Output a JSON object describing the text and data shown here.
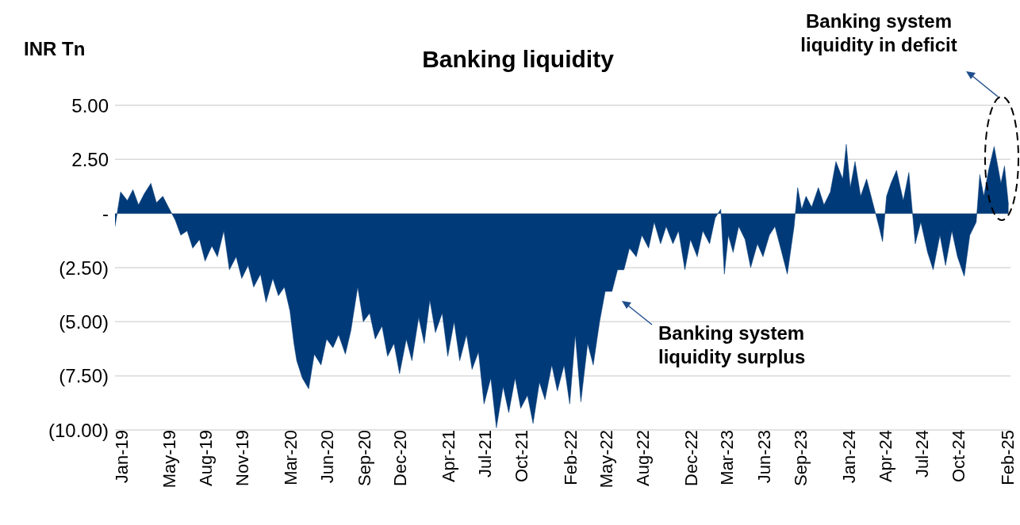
{
  "chart_data": {
    "type": "area",
    "title": "Banking liquidity",
    "ylabel": "INR Tn",
    "annotations": [
      "Banking system liquidity in deficit",
      "Banking system liquidity surplus"
    ],
    "x": [
      "2019-01-01",
      "2019-01-15",
      "2019-02-01",
      "2019-02-15",
      "2019-03-01",
      "2019-03-15",
      "2019-04-01",
      "2019-04-15",
      "2019-05-01",
      "2019-05-15",
      "2019-06-01",
      "2019-06-15",
      "2019-07-01",
      "2019-07-15",
      "2019-08-01",
      "2019-08-15",
      "2019-09-01",
      "2019-09-15",
      "2019-10-01",
      "2019-10-15",
      "2019-11-01",
      "2019-11-15",
      "2019-12-01",
      "2019-12-15",
      "2020-01-01",
      "2020-01-15",
      "2020-02-01",
      "2020-02-15",
      "2020-03-01",
      "2020-03-15",
      "2020-03-25",
      "2020-04-01",
      "2020-04-15",
      "2020-05-01",
      "2020-05-15",
      "2020-06-01",
      "2020-06-15",
      "2020-07-01",
      "2020-07-15",
      "2020-08-01",
      "2020-08-15",
      "2020-09-01",
      "2020-09-15",
      "2020-10-01",
      "2020-10-15",
      "2020-11-01",
      "2020-11-15",
      "2020-12-01",
      "2020-12-15",
      "2021-01-01",
      "2021-01-15",
      "2021-02-01",
      "2021-02-15",
      "2021-03-01",
      "2021-03-15",
      "2021-04-01",
      "2021-04-15",
      "2021-05-01",
      "2021-05-15",
      "2021-06-01",
      "2021-06-15",
      "2021-07-01",
      "2021-07-15",
      "2021-08-01",
      "2021-08-15",
      "2021-09-01",
      "2021-09-15",
      "2021-10-01",
      "2021-10-15",
      "2021-11-01",
      "2021-11-15",
      "2021-12-01",
      "2021-12-15",
      "2022-01-01",
      "2022-01-15",
      "2022-02-01",
      "2022-02-15",
      "2022-03-01",
      "2022-03-15",
      "2022-04-01",
      "2022-04-15",
      "2022-05-01",
      "2022-05-15",
      "2022-06-01",
      "2022-06-15",
      "2022-07-01",
      "2022-07-15",
      "2022-08-01",
      "2022-08-15",
      "2022-09-01",
      "2022-09-15",
      "2022-10-01",
      "2022-10-15",
      "2022-11-01",
      "2022-11-15",
      "2022-12-01",
      "2022-12-15",
      "2023-01-01",
      "2023-01-15",
      "2023-02-01",
      "2023-02-15",
      "2023-03-01",
      "2023-03-10",
      "2023-03-20",
      "2023-04-01",
      "2023-04-15",
      "2023-05-01",
      "2023-05-15",
      "2023-06-01",
      "2023-06-15",
      "2023-07-01",
      "2023-07-15",
      "2023-08-01",
      "2023-08-15",
      "2023-09-01",
      "2023-09-10",
      "2023-09-20",
      "2023-10-01",
      "2023-10-15",
      "2023-11-01",
      "2023-11-15",
      "2023-12-01",
      "2023-12-15",
      "2024-01-01",
      "2024-01-10",
      "2024-01-20",
      "2024-02-01",
      "2024-02-15",
      "2024-03-01",
      "2024-03-15",
      "2024-04-01",
      "2024-04-10",
      "2024-04-20",
      "2024-05-01",
      "2024-05-15",
      "2024-06-01",
      "2024-06-15",
      "2024-07-01",
      "2024-07-15",
      "2024-08-01",
      "2024-08-15",
      "2024-09-01",
      "2024-09-15",
      "2024-10-01",
      "2024-10-15",
      "2024-11-01",
      "2024-11-15",
      "2024-12-01",
      "2024-12-10",
      "2024-12-20",
      "2025-01-01",
      "2025-01-15",
      "2025-02-01",
      "2025-02-10",
      "2025-02-20"
    ],
    "series": [
      {
        "color": "#003a78",
        "values": [
          -0.6,
          1.0,
          0.6,
          1.1,
          0.4,
          0.9,
          1.4,
          0.5,
          0.8,
          0.3,
          -0.3,
          -1.0,
          -0.8,
          -1.6,
          -1.2,
          -2.2,
          -1.5,
          -2.0,
          -0.8,
          -2.6,
          -2.0,
          -3.0,
          -2.4,
          -3.4,
          -2.8,
          -4.1,
          -3.0,
          -3.8,
          -3.4,
          -4.5,
          -6.0,
          -6.8,
          -7.6,
          -8.1,
          -6.5,
          -7.0,
          -5.8,
          -6.2,
          -5.6,
          -6.5,
          -5.4,
          -3.4,
          -5.0,
          -4.6,
          -5.8,
          -5.2,
          -6.6,
          -6.0,
          -7.4,
          -5.8,
          -6.8,
          -4.8,
          -6.0,
          -4.0,
          -5.5,
          -4.6,
          -6.6,
          -5.0,
          -6.8,
          -5.6,
          -7.2,
          -6.4,
          -8.8,
          -7.6,
          -9.9,
          -8.0,
          -9.2,
          -7.6,
          -9.0,
          -8.4,
          -9.7,
          -7.8,
          -8.6,
          -7.0,
          -8.2,
          -7.0,
          -8.8,
          -5.6,
          -8.7,
          -6.0,
          -7.0,
          -5.0,
          -3.6,
          -3.6,
          -2.6,
          -2.6,
          -1.6,
          -2.0,
          -1.0,
          -1.6,
          -0.4,
          -1.4,
          -0.6,
          -1.4,
          -0.8,
          -2.6,
          -1.2,
          -2.0,
          -0.8,
          -1.4,
          -0.2,
          0.2,
          -2.8,
          -1.0,
          -1.8,
          -0.6,
          -1.2,
          -2.5,
          -1.4,
          -2.0,
          -1.0,
          -0.6,
          -1.8,
          -2.8,
          -0.6,
          1.2,
          0.2,
          0.8,
          0.3,
          1.2,
          0.4,
          1.0,
          2.4,
          1.6,
          3.2,
          1.2,
          2.4,
          0.8,
          1.6,
          0.6,
          -0.6,
          -1.3,
          0.8,
          1.4,
          2.0,
          0.6,
          1.9,
          -1.4,
          -0.4,
          -1.8,
          -2.6,
          -1.0,
          -2.4,
          -0.8,
          -2.0,
          -2.9,
          -1.0,
          -0.4,
          1.8,
          0.8,
          2.0,
          3.1,
          1.4,
          2.2,
          0.4
        ]
      }
    ],
    "xlim": [
      "2019-01-01",
      "2025-02-25"
    ],
    "xticks": [
      {
        "value": "2019-01-01",
        "label": "Jan-19"
      },
      {
        "value": "2019-05-01",
        "label": "May-19"
      },
      {
        "value": "2019-08-01",
        "label": "Aug-19"
      },
      {
        "value": "2019-11-01",
        "label": "Nov-19"
      },
      {
        "value": "2020-03-01",
        "label": "Mar-20"
      },
      {
        "value": "2020-06-01",
        "label": "Jun-20"
      },
      {
        "value": "2020-09-01",
        "label": "Sep-20"
      },
      {
        "value": "2020-12-01",
        "label": "Dec-20"
      },
      {
        "value": "2021-04-01",
        "label": "Apr-21"
      },
      {
        "value": "2021-07-01",
        "label": "Jul-21"
      },
      {
        "value": "2021-10-01",
        "label": "Oct-21"
      },
      {
        "value": "2022-02-01",
        "label": "Feb-22"
      },
      {
        "value": "2022-05-01",
        "label": "May-22"
      },
      {
        "value": "2022-08-01",
        "label": "Aug-22"
      },
      {
        "value": "2022-12-01",
        "label": "Dec-22"
      },
      {
        "value": "2023-03-01",
        "label": "Mar-23"
      },
      {
        "value": "2023-06-01",
        "label": "Jun-23"
      },
      {
        "value": "2023-09-01",
        "label": "Sep-23"
      },
      {
        "value": "2024-01-01",
        "label": "Jan-24"
      },
      {
        "value": "2024-04-01",
        "label": "Apr-24"
      },
      {
        "value": "2024-07-01",
        "label": "Jul-24"
      },
      {
        "value": "2024-10-01",
        "label": "Oct-24"
      },
      {
        "value": "2025-02-01",
        "label": "Feb-25"
      }
    ],
    "ylim": [
      -10,
      5
    ],
    "yticks": [
      {
        "value": 5,
        "label": "5.00"
      },
      {
        "value": 2.5,
        "label": "2.50"
      },
      {
        "value": 0,
        "label": "-"
      },
      {
        "value": -2.5,
        "label": "(2.50)"
      },
      {
        "value": -5,
        "label": "(5.00)"
      },
      {
        "value": -7.5,
        "label": "(7.50)"
      },
      {
        "value": -10,
        "label": "(10.00)"
      }
    ],
    "grid": "y",
    "legend": false
  }
}
